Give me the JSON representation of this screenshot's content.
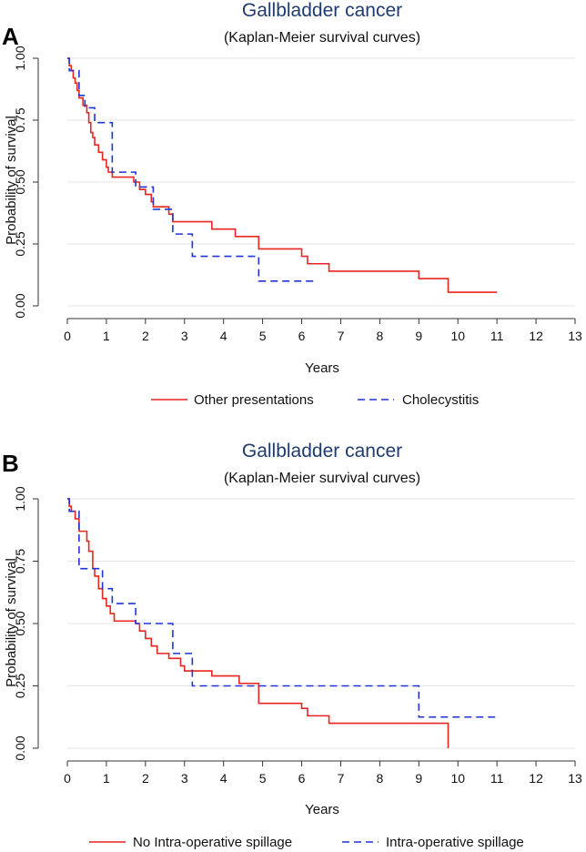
{
  "colors": {
    "red": "#e8251f",
    "blue": "#1f33d6",
    "grid": "#e4e4e4",
    "axis": "#333333"
  },
  "chart_data": [
    {
      "panel_label": "A",
      "type": "line",
      "title": "Gallbladder cancer",
      "subtitle": "(Kaplan-Meier survival curves)",
      "xlabel": "Years",
      "ylabel": "Probability of survival",
      "xlim": [
        0,
        13
      ],
      "ylim": [
        0,
        1
      ],
      "xticks": [
        "0",
        "1",
        "2",
        "3",
        "4",
        "5",
        "6",
        "7",
        "8",
        "9",
        "10",
        "11",
        "12",
        "13"
      ],
      "yticks": [
        "0.00",
        "0.25",
        "0.50",
        "0.75",
        "1.00"
      ],
      "yticks_values": [
        0,
        0.25,
        0.5,
        0.75,
        1
      ],
      "grid": true,
      "legend_position": "bottom",
      "series": [
        {
          "name": "Other presentations",
          "color": "#e8251f",
          "dash": "solid",
          "steps": [
            [
              0,
              1.0
            ],
            [
              0.05,
              0.97
            ],
            [
              0.1,
              0.95
            ],
            [
              0.15,
              0.92
            ],
            [
              0.2,
              0.9
            ],
            [
              0.25,
              0.87
            ],
            [
              0.3,
              0.84
            ],
            [
              0.4,
              0.81
            ],
            [
              0.5,
              0.78
            ],
            [
              0.55,
              0.74
            ],
            [
              0.6,
              0.7
            ],
            [
              0.65,
              0.68
            ],
            [
              0.7,
              0.65
            ],
            [
              0.8,
              0.62
            ],
            [
              0.9,
              0.59
            ],
            [
              1.0,
              0.56
            ],
            [
              1.05,
              0.54
            ],
            [
              1.15,
              0.52
            ],
            [
              1.7,
              0.5
            ],
            [
              1.85,
              0.47
            ],
            [
              2.0,
              0.45
            ],
            [
              2.15,
              0.42
            ],
            [
              2.2,
              0.4
            ],
            [
              2.6,
              0.37
            ],
            [
              2.7,
              0.34
            ],
            [
              3.7,
              0.31
            ],
            [
              4.3,
              0.28
            ],
            [
              4.9,
              0.23
            ],
            [
              6.0,
              0.2
            ],
            [
              6.15,
              0.17
            ],
            [
              6.7,
              0.14
            ],
            [
              9.0,
              0.11
            ],
            [
              9.75,
              0.055
            ],
            [
              11.0,
              0.055
            ]
          ]
        },
        {
          "name": "Cholecystitis",
          "color": "#1f33d6",
          "dash": "dashed",
          "steps": [
            [
              0,
              1.0
            ],
            [
              0.05,
              0.95
            ],
            [
              0.3,
              0.85
            ],
            [
              0.45,
              0.8
            ],
            [
              0.7,
              0.74
            ],
            [
              1.15,
              0.54
            ],
            [
              1.75,
              0.48
            ],
            [
              2.2,
              0.39
            ],
            [
              2.7,
              0.29
            ],
            [
              3.2,
              0.2
            ],
            [
              4.9,
              0.1
            ],
            [
              6.3,
              0.1
            ]
          ]
        }
      ]
    },
    {
      "panel_label": "B",
      "type": "line",
      "title": "Gallbladder cancer",
      "subtitle": "(Kaplan-Meier survival curves)",
      "xlabel": "Years",
      "ylabel": "Probability of survival",
      "xlim": [
        0,
        13
      ],
      "ylim": [
        0,
        1
      ],
      "xticks": [
        "0",
        "1",
        "2",
        "3",
        "4",
        "5",
        "6",
        "7",
        "8",
        "9",
        "10",
        "11",
        "12",
        "13"
      ],
      "yticks": [
        "0.00",
        "0.25",
        "0.50",
        "0.75",
        "1.00"
      ],
      "yticks_values": [
        0,
        0.25,
        0.5,
        0.75,
        1
      ],
      "grid": true,
      "legend_position": "bottom",
      "series": [
        {
          "name": "No Intra-operative spillage",
          "color": "#e8251f",
          "dash": "solid",
          "steps": [
            [
              0,
              1.0
            ],
            [
              0.05,
              0.97
            ],
            [
              0.1,
              0.95
            ],
            [
              0.2,
              0.92
            ],
            [
              0.3,
              0.87
            ],
            [
              0.5,
              0.83
            ],
            [
              0.55,
              0.79
            ],
            [
              0.65,
              0.72
            ],
            [
              0.7,
              0.69
            ],
            [
              0.8,
              0.64
            ],
            [
              0.9,
              0.6
            ],
            [
              1.0,
              0.57
            ],
            [
              1.1,
              0.54
            ],
            [
              1.2,
              0.51
            ],
            [
              1.75,
              0.5
            ],
            [
              1.85,
              0.47
            ],
            [
              2.0,
              0.44
            ],
            [
              2.15,
              0.41
            ],
            [
              2.3,
              0.38
            ],
            [
              2.6,
              0.36
            ],
            [
              2.9,
              0.33
            ],
            [
              3.0,
              0.31
            ],
            [
              3.7,
              0.29
            ],
            [
              4.4,
              0.26
            ],
            [
              4.9,
              0.18
            ],
            [
              6.0,
              0.16
            ],
            [
              6.15,
              0.13
            ],
            [
              6.7,
              0.1
            ],
            [
              9.75,
              0.0
            ]
          ]
        },
        {
          "name": "Intra-operative spillage",
          "color": "#1f33d6",
          "dash": "dashed",
          "steps": [
            [
              0,
              1.0
            ],
            [
              0.05,
              0.95
            ],
            [
              0.3,
              0.72
            ],
            [
              0.9,
              0.64
            ],
            [
              1.15,
              0.58
            ],
            [
              1.75,
              0.5
            ],
            [
              2.7,
              0.38
            ],
            [
              3.2,
              0.25
            ],
            [
              9.0,
              0.125
            ],
            [
              11.0,
              0.125
            ]
          ]
        }
      ]
    }
  ]
}
